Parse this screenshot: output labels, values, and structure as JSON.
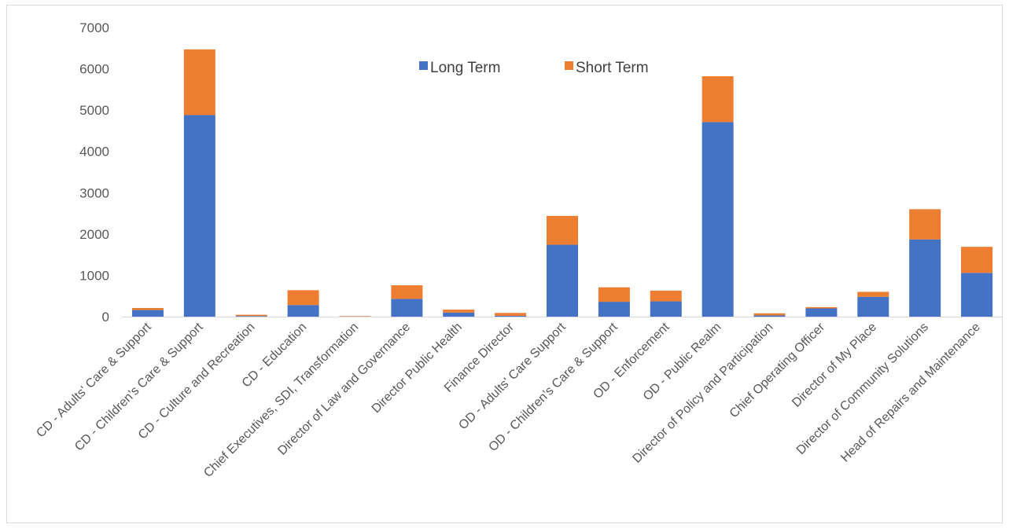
{
  "chart_data": {
    "type": "bar",
    "stacked": true,
    "title": "",
    "xlabel": "",
    "ylabel": "",
    "ylim": [
      0,
      7000
    ],
    "yticks": [
      0,
      1000,
      2000,
      3000,
      4000,
      5000,
      6000,
      7000
    ],
    "grid": false,
    "legend_position": "top",
    "categories": [
      "CD - Adults' Care & Support",
      "CD - Children’s Care & Support",
      "CD - Culture and Recreation",
      "CD - Education",
      "Chief Executives, SDI, Transformation",
      "Director of Law and Governance",
      "Director Public Health",
      "Finance Director",
      "OD - Adults' Care Support",
      "OD - Children’s Care & Support",
      "OD - Enforcement",
      "OD - Public Realm",
      "Director of Policy and Participation",
      "Chief Operating Officer",
      "Director of My Place",
      "Director of Community Solutions",
      "Head of Repairs and Maintenance"
    ],
    "series": [
      {
        "name": "Long Term",
        "color": "#4472c4",
        "values": [
          160,
          4880,
          15,
          280,
          5,
          430,
          100,
          20,
          1740,
          360,
          370,
          4710,
          30,
          200,
          480,
          1870,
          1060
        ]
      },
      {
        "name": "Short Term",
        "color": "#ed7d31",
        "values": [
          50,
          1590,
          30,
          360,
          10,
          330,
          70,
          70,
          700,
          350,
          260,
          1110,
          50,
          30,
          120,
          730,
          630
        ]
      }
    ]
  }
}
